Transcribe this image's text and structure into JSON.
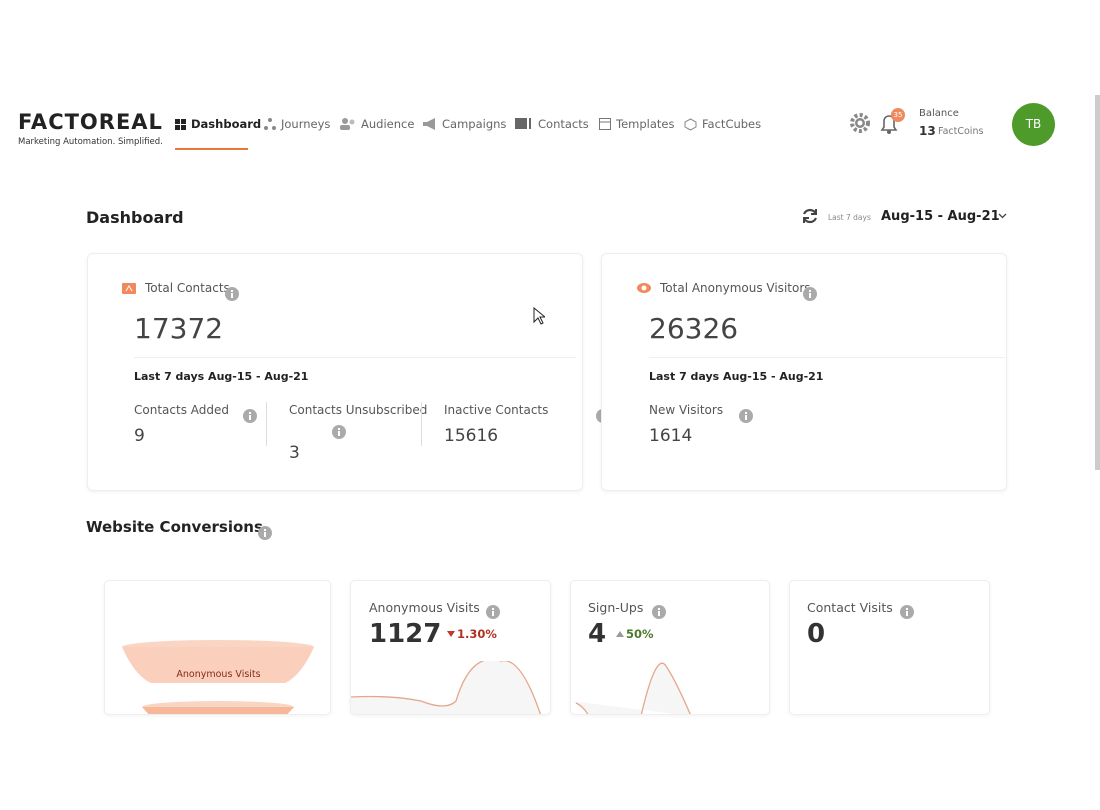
{
  "header": {
    "logo": "FACTOREAL",
    "tagline": "Marketing Automation. Simplified.",
    "nav": [
      "Dashboard",
      "Journeys",
      "Audience",
      "Campaigns",
      "Contacts",
      "Templates",
      "FactCubes"
    ],
    "notification_count": "35",
    "balance_label": "Balance",
    "balance_amount": "13",
    "balance_unit": "FactCoins",
    "avatar": "TB"
  },
  "page": {
    "title": "Dashboard",
    "range_label": "Last 7 days",
    "range": "Aug-15 - Aug-21"
  },
  "cards": [
    {
      "title": "Total Contacts",
      "value": "17372",
      "period": "Last 7 days Aug-15 - Aug-21",
      "stats": [
        {
          "label": "Contacts Added",
          "value": "9"
        },
        {
          "label": "Contacts Unsubscribed",
          "value": "3"
        },
        {
          "label": "Inactive Contacts",
          "value": "15616"
        }
      ]
    },
    {
      "title": "Total Anonymous Visitors",
      "value": "26326",
      "period": "Last 7 days Aug-15 - Aug-21",
      "stats": [
        {
          "label": "New Visitors",
          "value": "1614"
        }
      ]
    }
  ],
  "conversions": {
    "title": "Website Conversions",
    "funnel_label": "Anonymous Visits",
    "tiles": [
      {
        "label": "Anonymous Visits",
        "value": "1127",
        "change": "1.30%"
      },
      {
        "label": "Sign-Ups",
        "value": "4",
        "change": "50%"
      },
      {
        "label": "Contact Visits",
        "value": "0"
      }
    ]
  }
}
